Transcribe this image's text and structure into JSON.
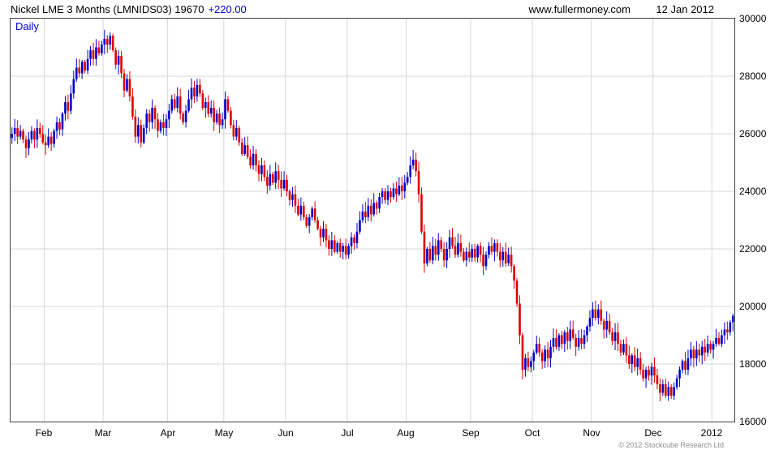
{
  "header": {
    "title": "Nickel LME 3 Months (LMNIDS03) 19670",
    "change": "+220.00",
    "source": "www.fullermoney.com",
    "date": "12 Jan 2012"
  },
  "footer": {
    "copyright": "© 2012 Stockcube Research Ltd"
  },
  "colors": {
    "up": "#0000cc",
    "down": "#dd0000",
    "grid": "#d7d7d7",
    "accent_blue": "#0000cc"
  },
  "chart_data": {
    "type": "candlestick",
    "title": "Nickel LME 3 Months (LMNIDS03)",
    "timeframe": "Daily",
    "last_price": 19670,
    "change": "+220.00",
    "ylim": [
      16000,
      30000
    ],
    "y_ticks": [
      30000,
      28000,
      26000,
      24000,
      22000,
      20000,
      18000,
      16000
    ],
    "grid": true,
    "months": [
      {
        "label": "Feb",
        "index": 12
      },
      {
        "label": "Mar",
        "index": 33
      },
      {
        "label": "Apr",
        "index": 56
      },
      {
        "label": "May",
        "index": 76
      },
      {
        "label": "Jun",
        "index": 98
      },
      {
        "label": "Jul",
        "index": 120
      },
      {
        "label": "Aug",
        "index": 141
      },
      {
        "label": "Sep",
        "index": 164
      },
      {
        "label": "Oct",
        "index": 186
      },
      {
        "label": "Nov",
        "index": 207
      },
      {
        "label": "Dec",
        "index": 229
      },
      {
        "label": "2012",
        "index": 250
      }
    ],
    "closes": [
      26000,
      26200,
      25900,
      26100,
      25800,
      25500,
      25800,
      26100,
      25800,
      26200,
      26000,
      25700,
      25600,
      25900,
      25650,
      26100,
      26400,
      26150,
      26700,
      27100,
      26800,
      27400,
      27900,
      28300,
      28100,
      28500,
      28200,
      28600,
      28900,
      28600,
      29000,
      28800,
      29100,
      29300,
      29100,
      29400,
      28900,
      28400,
      28700,
      28100,
      27500,
      27900,
      27300,
      26600,
      25900,
      26300,
      25700,
      26200,
      26700,
      26400,
      26900,
      26500,
      26100,
      26400,
      26200,
      26500,
      26800,
      27200,
      26900,
      27300,
      26700,
      26400,
      26800,
      27200,
      27600,
      27300,
      27700,
      27400,
      26900,
      27100,
      26700,
      26900,
      26400,
      26700,
      26300,
      26500,
      27200,
      26800,
      26300,
      25900,
      26200,
      25700,
      25300,
      25600,
      25200,
      24900,
      25300,
      24900,
      24600,
      24900,
      24500,
      24200,
      24600,
      24300,
      24700,
      24400,
      24100,
      24400,
      24000,
      23700,
      23900,
      23500,
      23200,
      23500,
      23100,
      22800,
      23100,
      23400,
      23000,
      22700,
      22400,
      22700,
      22300,
      22000,
      22300,
      21900,
      22200,
      21900,
      22100,
      21800,
      22100,
      22400,
      22200,
      22600,
      23000,
      23300,
      23100,
      23500,
      23200,
      23600,
      23400,
      23800,
      24000,
      23700,
      24000,
      23800,
      24100,
      23900,
      24200,
      24000,
      24300,
      24500,
      24900,
      25100,
      24700,
      23900,
      22600,
      21500,
      22000,
      21600,
      22100,
      21800,
      22300,
      22000,
      21600,
      22000,
      22400,
      22100,
      21800,
      22200,
      21900,
      21600,
      21900,
      21700,
      22000,
      21700,
      22100,
      21800,
      21400,
      21800,
      22100,
      21900,
      22200,
      21900,
      21600,
      21900,
      21500,
      21800,
      21400,
      20900,
      20100,
      19000,
      17800,
      18200,
      17900,
      18100,
      18400,
      18700,
      18400,
      18100,
      18500,
      18200,
      18600,
      18900,
      18600,
      19000,
      18700,
      19100,
      18800,
      19200,
      18900,
      18600,
      18900,
      18700,
      19000,
      19300,
      19600,
      19900,
      19600,
      19900,
      19500,
      19200,
      19500,
      19100,
      18800,
      19100,
      18700,
      18400,
      18700,
      18300,
      18000,
      18300,
      17900,
      18200,
      17800,
      17500,
      17800,
      17600,
      17900,
      17600,
      17300,
      17000,
      17300,
      16900,
      17200,
      16900,
      17200,
      17500,
      17800,
      18100,
      17800,
      18200,
      18500,
      18200,
      18500,
      18300,
      18600,
      18400,
      18700,
      18500,
      18700,
      18900,
      18700,
      19000,
      19200,
      19100,
      19450,
      19670
    ],
    "up_color": "#0000cc",
    "down_color": "#dd0000",
    "legend_position": "none"
  }
}
